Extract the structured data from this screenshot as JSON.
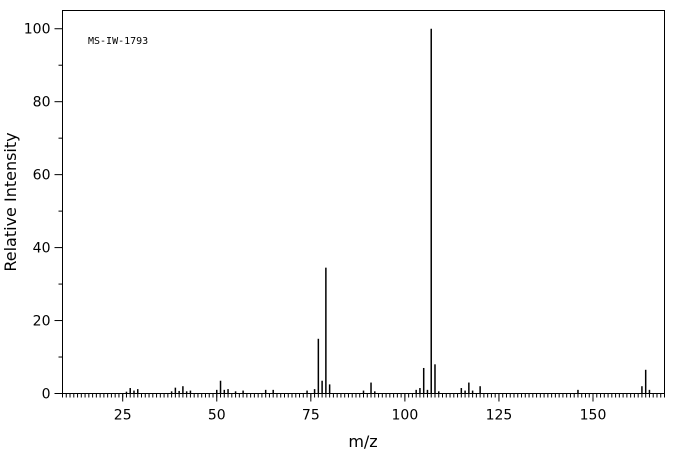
{
  "chart_data": {
    "type": "stem",
    "annotation": "MS-IW-1793",
    "xlabel": "m/z",
    "ylabel": "Relative Intensity",
    "x": [
      26,
      27,
      28,
      29,
      38,
      39,
      40,
      41,
      42,
      43,
      50,
      51,
      52,
      53,
      55,
      57,
      63,
      65,
      74,
      76,
      77,
      78,
      79,
      80,
      89,
      91,
      92,
      103,
      104,
      105,
      106,
      107,
      108,
      109,
      115,
      116,
      117,
      118,
      120,
      146,
      163,
      164,
      165
    ],
    "values": [
      0.5,
      1.5,
      0.8,
      1.2,
      0.6,
      1.6,
      0.7,
      2,
      0.6,
      0.8,
      1,
      3.5,
      1,
      1.2,
      0.6,
      0.8,
      1,
      1,
      0.8,
      1.2,
      15,
      3.5,
      34.5,
      2.5,
      0.8,
      3,
      0.6,
      1,
      1.5,
      7,
      1,
      100,
      8,
      0.6,
      1.5,
      0.8,
      3,
      0.8,
      2,
      1,
      2,
      6.5,
      1
    ],
    "color": "#000000",
    "xlim": [
      9,
      169
    ],
    "xticks": [
      25,
      50,
      75,
      100,
      125,
      150
    ],
    "ylim": [
      0,
      105
    ],
    "yticks": [
      0,
      20,
      40,
      60,
      80,
      100
    ]
  }
}
